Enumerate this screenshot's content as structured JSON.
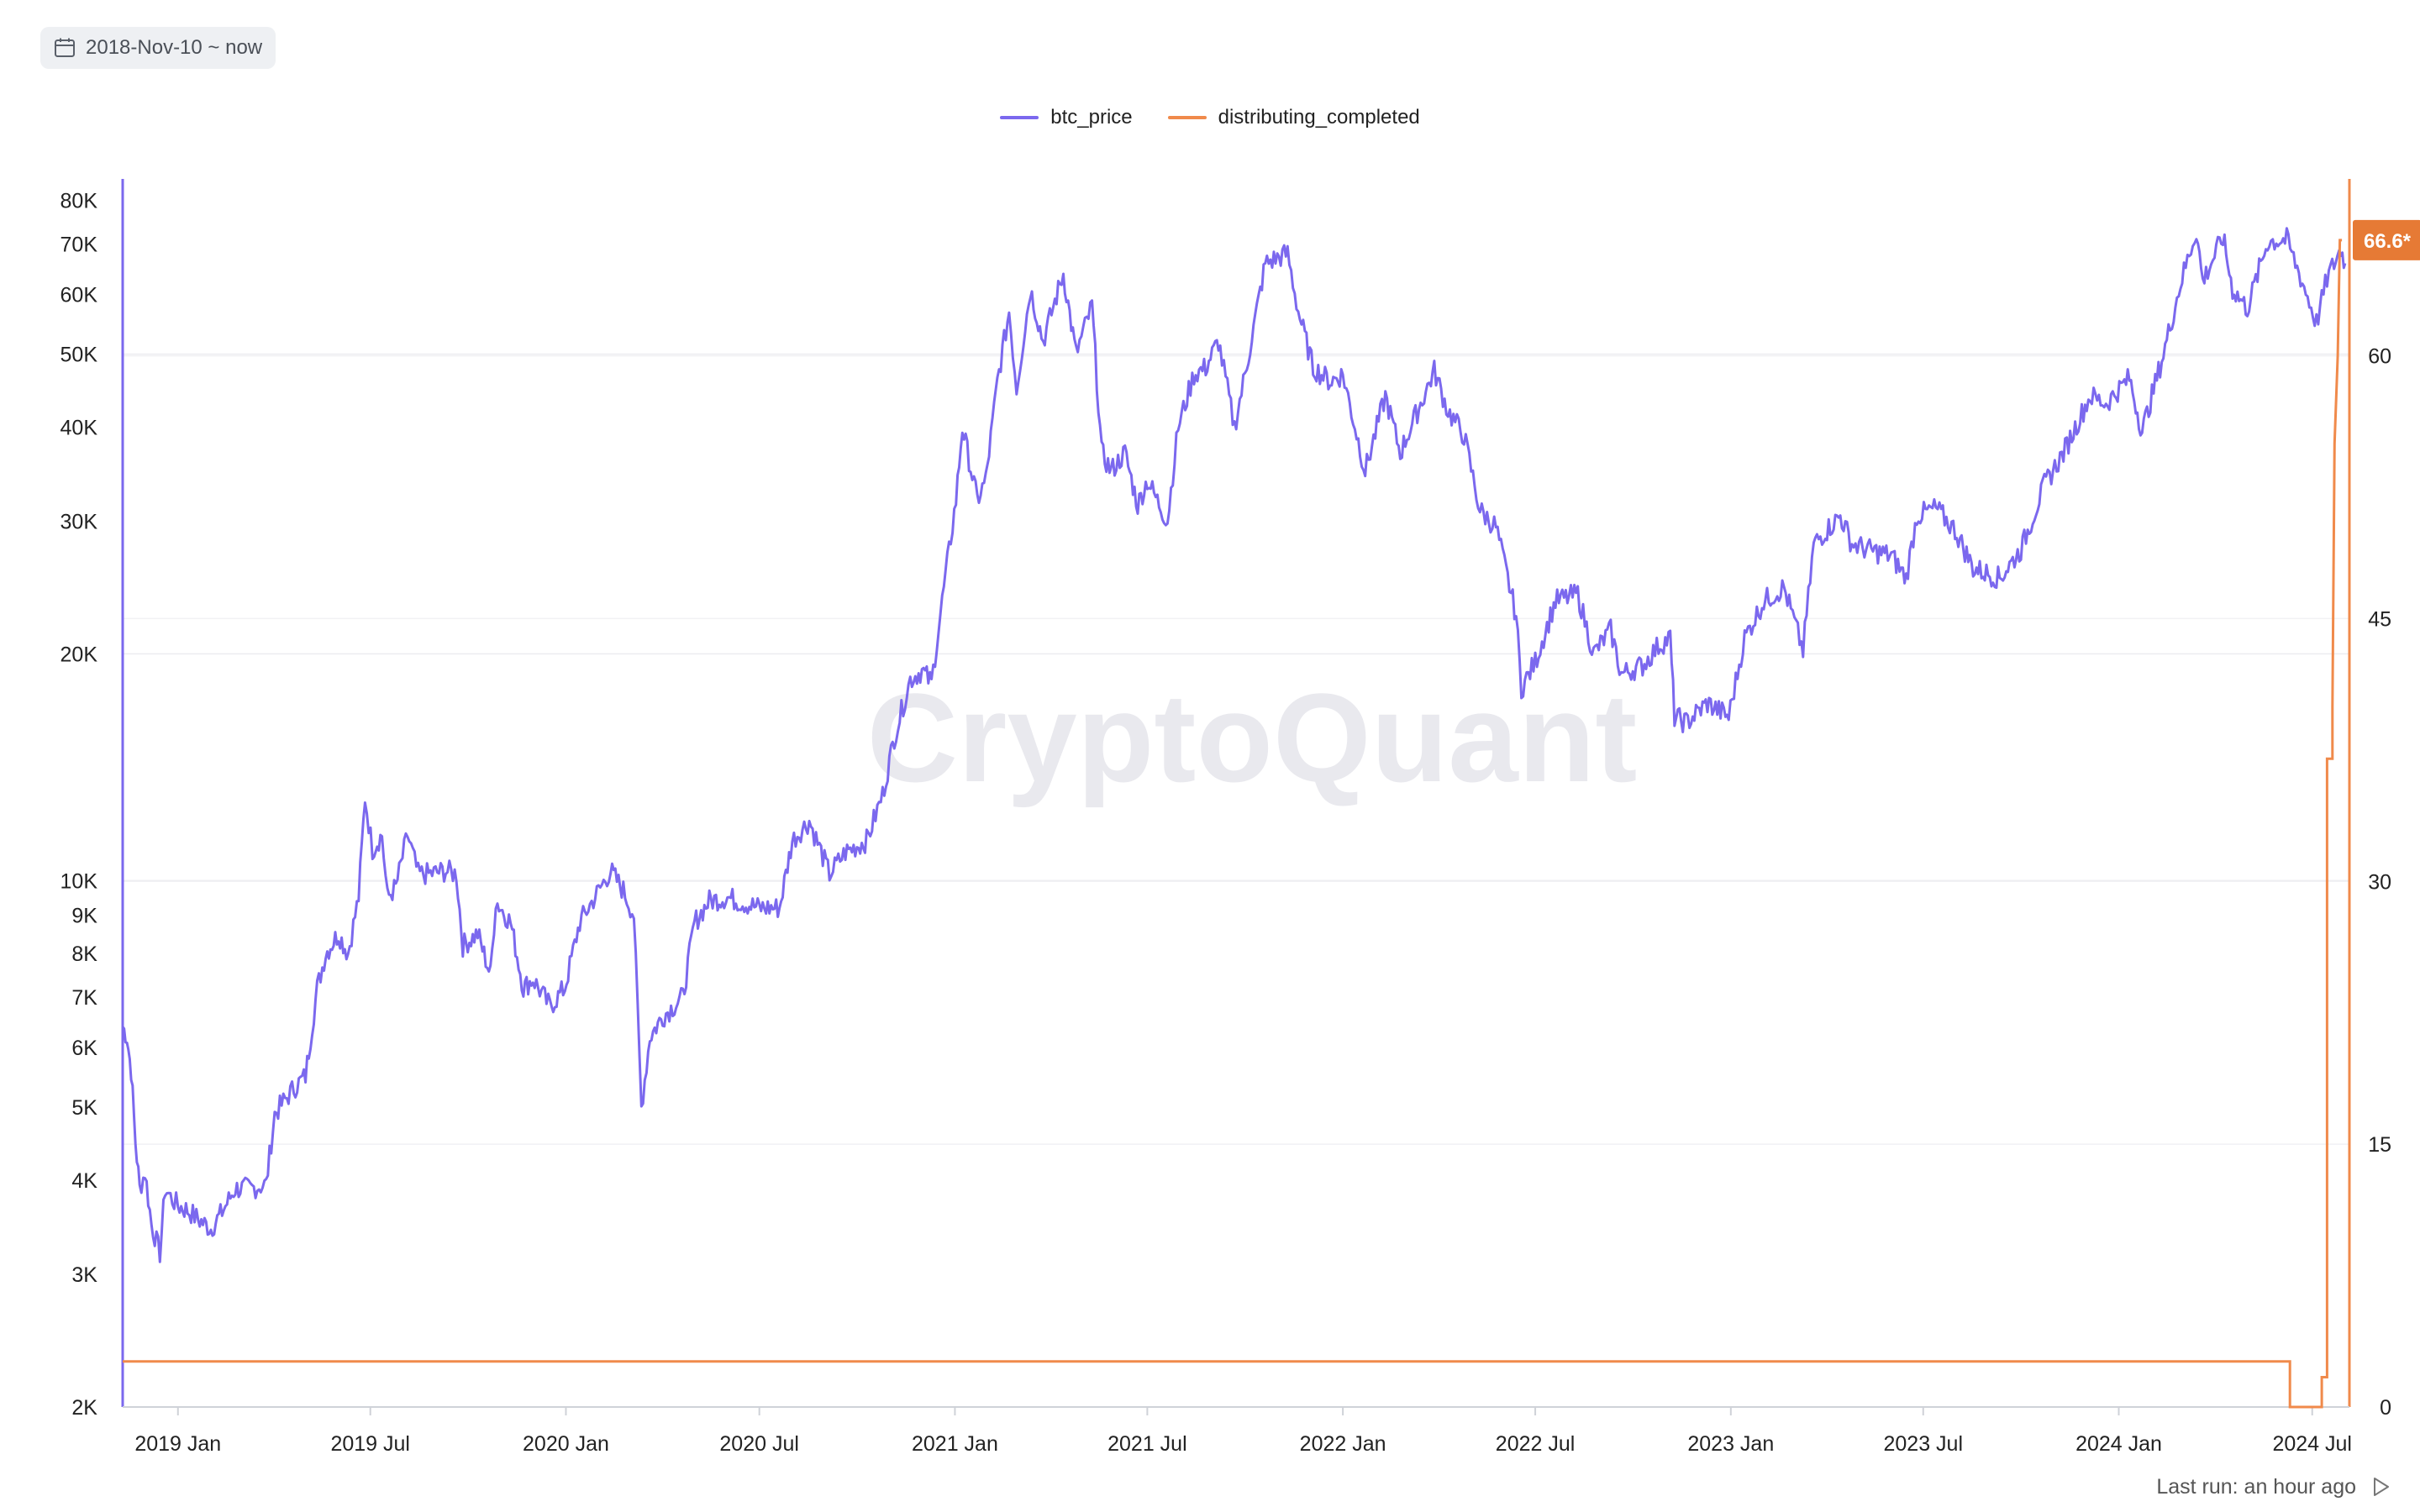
{
  "date_range": {
    "label": "2018-Nov-10 ~ now",
    "icon": "calendar-icon"
  },
  "footer": {
    "last_run": "Last run: an hour ago",
    "icon": "play-icon"
  },
  "watermark": "CryptoQuant",
  "colors": {
    "btc_price": "#7b68ee",
    "distributing_completed": "#f08a4b",
    "badge": "#e67a35"
  },
  "chart_data": {
    "type": "line",
    "x_ticks": [
      "2019 Jan",
      "2019 Jul",
      "2020 Jan",
      "2020 Jul",
      "2021 Jan",
      "2021 Jul",
      "2022 Jan",
      "2022 Jul",
      "2023 Jan",
      "2023 Jul",
      "2024 Jan",
      "2024 Jul"
    ],
    "x_range": [
      "2018-11-10",
      "2024-08-05"
    ],
    "y_left": {
      "scale": "log",
      "range": [
        2000,
        85000
      ],
      "ticks": [
        {
          "v": 2000,
          "label": "2K"
        },
        {
          "v": 3000,
          "label": "3K"
        },
        {
          "v": 4000,
          "label": "4K"
        },
        {
          "v": 5000,
          "label": "5K"
        },
        {
          "v": 6000,
          "label": "6K"
        },
        {
          "v": 7000,
          "label": "7K"
        },
        {
          "v": 8000,
          "label": "8K"
        },
        {
          "v": 9000,
          "label": "9K"
        },
        {
          "v": 10000,
          "label": "10K"
        },
        {
          "v": 20000,
          "label": "20K"
        },
        {
          "v": 30000,
          "label": "30K"
        },
        {
          "v": 40000,
          "label": "40K"
        },
        {
          "v": 50000,
          "label": "50K"
        },
        {
          "v": 60000,
          "label": "60K"
        },
        {
          "v": 70000,
          "label": "70K"
        },
        {
          "v": 80000,
          "label": "80K"
        }
      ]
    },
    "y_right": {
      "scale": "linear",
      "range": [
        0,
        70
      ],
      "ticks": [
        0,
        15,
        30,
        45,
        60
      ]
    },
    "grid_values_left": [
      10000,
      50000,
      20000
    ],
    "grid_values_right": [
      15,
      30,
      45,
      60
    ],
    "legend_position": "top-center",
    "series": [
      {
        "name": "btc_price",
        "axis": "left",
        "points": [
          [
            "2018-11-10",
            6400
          ],
          [
            "2018-11-14",
            6200
          ],
          [
            "2018-11-18",
            5600
          ],
          [
            "2018-11-22",
            4500
          ],
          [
            "2018-11-26",
            3900
          ],
          [
            "2018-12-01",
            4100
          ],
          [
            "2018-12-07",
            3500
          ],
          [
            "2018-12-15",
            3200
          ],
          [
            "2018-12-20",
            3900
          ],
          [
            "2018-12-25",
            3800
          ],
          [
            "2019-01-01",
            3700
          ],
          [
            "2019-01-10",
            3650
          ],
          [
            "2019-01-20",
            3550
          ],
          [
            "2019-02-01",
            3450
          ],
          [
            "2019-02-10",
            3600
          ],
          [
            "2019-02-24",
            3900
          ],
          [
            "2019-03-10",
            3900
          ],
          [
            "2019-03-25",
            3950
          ],
          [
            "2019-04-02",
            4900
          ],
          [
            "2019-04-20",
            5300
          ],
          [
            "2019-05-01",
            5500
          ],
          [
            "2019-05-12",
            7200
          ],
          [
            "2019-05-20",
            8000
          ],
          [
            "2019-06-01",
            8500
          ],
          [
            "2019-06-10",
            8000
          ],
          [
            "2019-06-20",
            9500
          ],
          [
            "2019-06-26",
            12900
          ],
          [
            "2019-07-03",
            11000
          ],
          [
            "2019-07-12",
            11500
          ],
          [
            "2019-07-17",
            9500
          ],
          [
            "2019-07-25",
            9800
          ],
          [
            "2019-08-05",
            11500
          ],
          [
            "2019-08-15",
            10200
          ],
          [
            "2019-08-25",
            10200
          ],
          [
            "2019-09-10",
            10300
          ],
          [
            "2019-09-20",
            10200
          ],
          [
            "2019-09-26",
            8200
          ],
          [
            "2019-10-10",
            8500
          ],
          [
            "2019-10-22",
            7500
          ],
          [
            "2019-10-27",
            9400
          ],
          [
            "2019-11-10",
            8800
          ],
          [
            "2019-11-22",
            7200
          ],
          [
            "2019-12-01",
            7400
          ],
          [
            "2019-12-17",
            6800
          ],
          [
            "2019-12-31",
            7200
          ],
          [
            "2020-01-14",
            8800
          ],
          [
            "2020-02-12",
            10300
          ],
          [
            "2020-02-24",
            9700
          ],
          [
            "2020-03-05",
            9000
          ],
          [
            "2020-03-12",
            5000
          ],
          [
            "2020-03-20",
            6200
          ],
          [
            "2020-04-01",
            6600
          ],
          [
            "2020-04-20",
            7000
          ],
          [
            "2020-05-01",
            8800
          ],
          [
            "2020-05-15",
            9400
          ],
          [
            "2020-06-01",
            9500
          ],
          [
            "2020-06-20",
            9300
          ],
          [
            "2020-07-01",
            9200
          ],
          [
            "2020-07-20",
            9200
          ],
          [
            "2020-08-01",
            11300
          ],
          [
            "2020-08-17",
            12000
          ],
          [
            "2020-09-05",
            10200
          ],
          [
            "2020-09-20",
            10900
          ],
          [
            "2020-10-10",
            11300
          ],
          [
            "2020-10-25",
            13000
          ],
          [
            "2020-11-05",
            15500
          ],
          [
            "2020-11-20",
            18500
          ],
          [
            "2020-12-01",
            19000
          ],
          [
            "2020-12-10",
            18300
          ],
          [
            "2020-12-20",
            23500
          ],
          [
            "2021-01-02",
            32000
          ],
          [
            "2021-01-08",
            40000
          ],
          [
            "2021-01-22",
            32000
          ],
          [
            "2021-01-30",
            34000
          ],
          [
            "2021-02-10",
            46000
          ],
          [
            "2021-02-21",
            57000
          ],
          [
            "2021-02-28",
            45000
          ],
          [
            "2021-03-13",
            61000
          ],
          [
            "2021-03-25",
            52000
          ],
          [
            "2021-04-13",
            64000
          ],
          [
            "2021-04-25",
            50000
          ],
          [
            "2021-05-10",
            58000
          ],
          [
            "2021-05-19",
            37000
          ],
          [
            "2021-05-28",
            35000
          ],
          [
            "2021-06-10",
            37000
          ],
          [
            "2021-06-22",
            31500
          ],
          [
            "2021-07-01",
            34000
          ],
          [
            "2021-07-20",
            30000
          ],
          [
            "2021-07-30",
            40000
          ],
          [
            "2021-08-14",
            47000
          ],
          [
            "2021-08-25",
            48000
          ],
          [
            "2021-09-06",
            52000
          ],
          [
            "2021-09-21",
            40000
          ],
          [
            "2021-10-01",
            47000
          ],
          [
            "2021-10-20",
            66000
          ],
          [
            "2021-11-10",
            68000
          ],
          [
            "2021-11-20",
            57000
          ],
          [
            "2021-12-04",
            48000
          ],
          [
            "2021-12-20",
            46000
          ],
          [
            "2022-01-01",
            47000
          ],
          [
            "2022-01-22",
            35000
          ],
          [
            "2022-02-10",
            44000
          ],
          [
            "2022-02-24",
            37000
          ],
          [
            "2022-03-28",
            47500
          ],
          [
            "2022-04-10",
            42000
          ],
          [
            "2022-04-25",
            39000
          ],
          [
            "2022-05-10",
            31000
          ],
          [
            "2022-05-25",
            29500
          ],
          [
            "2022-06-13",
            22500
          ],
          [
            "2022-06-18",
            18000
          ],
          [
            "2022-07-01",
            19500
          ],
          [
            "2022-07-20",
            23500
          ],
          [
            "2022-08-10",
            24000
          ],
          [
            "2022-08-25",
            20000
          ],
          [
            "2022-09-10",
            21500
          ],
          [
            "2022-09-20",
            18800
          ],
          [
            "2022-10-10",
            19300
          ],
          [
            "2022-10-25",
            20500
          ],
          [
            "2022-11-05",
            21000
          ],
          [
            "2022-11-09",
            16500
          ],
          [
            "2022-11-20",
            16200
          ],
          [
            "2022-12-10",
            17200
          ],
          [
            "2022-12-30",
            16500
          ],
          [
            "2023-01-14",
            21000
          ],
          [
            "2023-02-01",
            23500
          ],
          [
            "2023-02-20",
            24500
          ],
          [
            "2023-03-10",
            20200
          ],
          [
            "2023-03-20",
            28000
          ],
          [
            "2023-04-14",
            30500
          ],
          [
            "2023-04-25",
            28000
          ],
          [
            "2023-05-10",
            27500
          ],
          [
            "2023-06-01",
            27000
          ],
          [
            "2023-06-15",
            25200
          ],
          [
            "2023-06-25",
            30500
          ],
          [
            "2023-07-13",
            31200
          ],
          [
            "2023-07-31",
            29200
          ],
          [
            "2023-08-17",
            26000
          ],
          [
            "2023-09-11",
            25200
          ],
          [
            "2023-10-01",
            27500
          ],
          [
            "2023-10-23",
            33500
          ],
          [
            "2023-11-10",
            37000
          ],
          [
            "2023-12-05",
            44000
          ],
          [
            "2023-12-20",
            43000
          ],
          [
            "2024-01-11",
            46500
          ],
          [
            "2024-01-23",
            39500
          ],
          [
            "2024-02-12",
            50000
          ],
          [
            "2024-02-28",
            62000
          ],
          [
            "2024-03-14",
            73000
          ],
          [
            "2024-03-20",
            62500
          ],
          [
            "2024-04-08",
            71500
          ],
          [
            "2024-04-17",
            61000
          ],
          [
            "2024-05-01",
            57500
          ],
          [
            "2024-05-20",
            70500
          ],
          [
            "2024-06-07",
            71000
          ],
          [
            "2024-06-25",
            60500
          ],
          [
            "2024-07-05",
            55000
          ],
          [
            "2024-07-15",
            63000
          ],
          [
            "2024-07-28",
            69000
          ],
          [
            "2024-08-01",
            66000
          ]
        ]
      },
      {
        "name": "distributing_completed",
        "axis": "right",
        "last_value_label": "66.6*",
        "points": [
          [
            "2018-11-10",
            2.6
          ],
          [
            "2024-06-10",
            2.6
          ],
          [
            "2024-06-10",
            0
          ],
          [
            "2024-07-10",
            0
          ],
          [
            "2024-07-10",
            1.7
          ],
          [
            "2024-07-15",
            1.7
          ],
          [
            "2024-07-15",
            37
          ],
          [
            "2024-07-20",
            37
          ],
          [
            "2024-07-20",
            40
          ],
          [
            "2024-07-22",
            55
          ],
          [
            "2024-07-25",
            60
          ],
          [
            "2024-07-27",
            66.6
          ],
          [
            "2024-07-29",
            66.6
          ]
        ]
      }
    ]
  }
}
